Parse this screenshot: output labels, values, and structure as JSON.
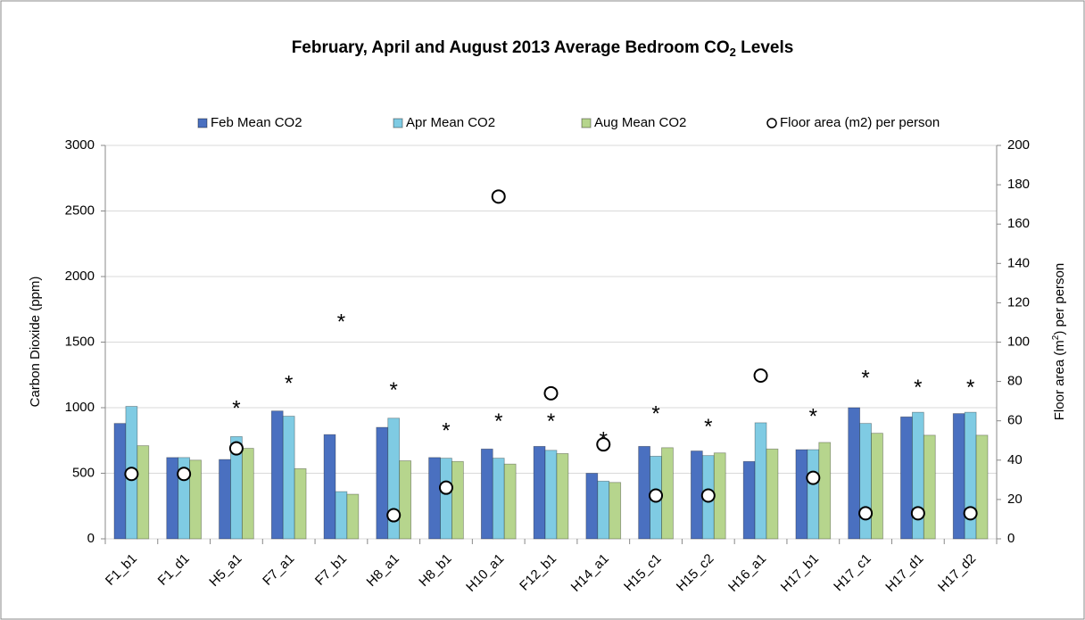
{
  "chart_data": {
    "type": "bar",
    "title": [
      "February, April and August 2013 Average Bedroom CO",
      "2",
      " Levels"
    ],
    "ylabel": "Carbon Dioxide (ppm)",
    "y2label": [
      "Floor area (m",
      "2",
      ") per person"
    ],
    "categories": [
      "F1_b1",
      "F1_d1",
      "H5_a1",
      "F7_a1",
      "F7_b1",
      "H8_a1",
      "H8_b1",
      "H10_a1",
      "F12_b1",
      "H14_a1",
      "H15_c1",
      "H15_c2",
      "H16_a1",
      "H17_b1",
      "H17_c1",
      "H17_d1",
      "H17_d2"
    ],
    "series": [
      {
        "name": "Feb Mean CO2",
        "color": "#4a70c0",
        "values": [
          880,
          620,
          605,
          975,
          795,
          850,
          620,
          685,
          705,
          500,
          705,
          670,
          590,
          680,
          1000,
          930,
          955
        ]
      },
      {
        "name": "Apr Mean CO2",
        "color": "#7fcbe3",
        "values": [
          1010,
          620,
          780,
          935,
          360,
          920,
          615,
          615,
          675,
          440,
          630,
          635,
          885,
          680,
          880,
          965,
          965
        ]
      },
      {
        "name": "Aug Mean CO2",
        "color": "#b6d58d",
        "values": [
          710,
          600,
          690,
          535,
          340,
          595,
          590,
          570,
          650,
          430,
          695,
          655,
          685,
          735,
          805,
          790,
          790
        ]
      },
      {
        "name": "Floor area (m2) per person",
        "type": "scatter",
        "axis": "y2",
        "color": "#ffffff",
        "values": [
          33,
          33,
          46,
          null,
          null,
          12,
          26,
          174,
          74,
          48,
          22,
          22,
          83,
          31,
          13,
          13,
          13
        ]
      }
    ],
    "annotations": [
      {
        "text": "*",
        "x": "H5_a1",
        "y": 1040
      },
      {
        "text": "*",
        "x": "F7_a1",
        "y": 1230
      },
      {
        "text": "*",
        "x": "F7_b1",
        "y": 1700
      },
      {
        "text": "*",
        "x": "H8_a1",
        "y": 1180
      },
      {
        "text": "*",
        "x": "H8_b1",
        "y": 870
      },
      {
        "text": "*",
        "x": "H10_a1",
        "y": 940
      },
      {
        "text": "*",
        "x": "F12_b1",
        "y": 940
      },
      {
        "text": "*",
        "x": "H14_a1",
        "y": 800
      },
      {
        "text": "*",
        "x": "H15_c1",
        "y": 1000
      },
      {
        "text": "*",
        "x": "H15_c2",
        "y": 900
      },
      {
        "text": "*",
        "x": "H17_b1",
        "y": 980
      },
      {
        "text": "*",
        "x": "H17_c1",
        "y": 1270
      },
      {
        "text": "*",
        "x": "H17_d1",
        "y": 1200
      },
      {
        "text": "*",
        "x": "H17_d2",
        "y": 1200
      }
    ],
    "ylim": [
      0,
      3000
    ],
    "yticks": [
      0,
      500,
      1000,
      1500,
      2000,
      2500,
      3000
    ],
    "y2lim": [
      0,
      200
    ],
    "y2ticks": [
      0,
      20,
      40,
      60,
      80,
      100,
      120,
      140,
      160,
      180,
      200
    ],
    "grid": true,
    "legend": "top"
  }
}
